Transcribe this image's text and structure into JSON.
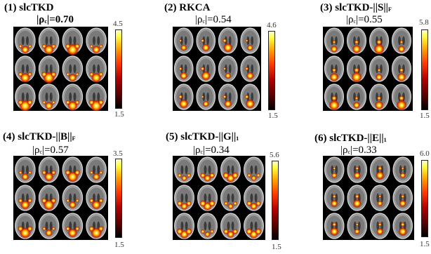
{
  "panels": [
    {
      "title": "(1) slcTKD",
      "corr_prefix": "|ρ",
      "corr_sub": "c",
      "corr_suffix": "|=0.70",
      "best": true,
      "cmax": "4.5",
      "cmin": "1.5"
    },
    {
      "title": "(2) RKCA",
      "corr_prefix": "|ρ",
      "corr_sub": "c",
      "corr_suffix": "|=0.54",
      "best": false,
      "cmax": "4.6",
      "cmin": "1.5"
    },
    {
      "title_main": "(3) slcTKD-||S||",
      "title_sub": "F",
      "corr_prefix": "|ρ",
      "corr_sub": "c",
      "corr_suffix": "|=0.55",
      "best": false,
      "cmax": "5.8",
      "cmin": "1.5"
    },
    {
      "title_main": "(4) slcTKD-||B||",
      "title_sub": "F",
      "corr_prefix": "|ρ",
      "corr_sub": "c",
      "corr_suffix": "|=0.57",
      "best": false,
      "cmax": "3.5",
      "cmin": "1.5"
    },
    {
      "title_main": "(5) slcTKD-||G||",
      "title_sub": "1",
      "corr_prefix": "|ρ",
      "corr_sub": "c",
      "corr_suffix": "|=0.34",
      "best": false,
      "cmax": "5.6",
      "cmin": "1.5"
    },
    {
      "title_main": "(6) slcTKD-||E||",
      "title_sub": "1",
      "corr_prefix": "|ρ",
      "corr_sub": "c",
      "corr_suffix": "|=0.33",
      "best": false,
      "cmax": "6.0",
      "cmin": "1.5"
    }
  ]
}
